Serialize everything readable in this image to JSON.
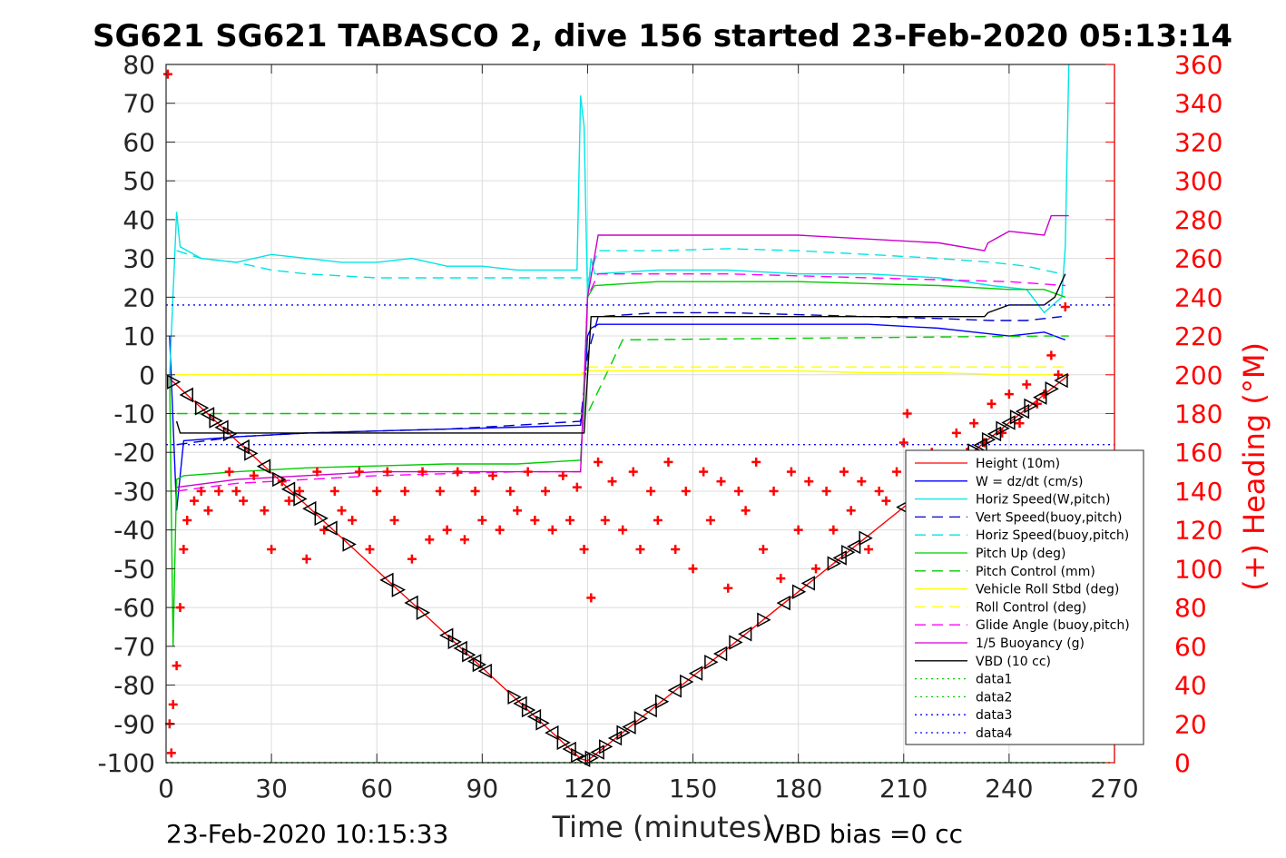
{
  "chart_data": {
    "type": "line",
    "title": "SG621 SG621 TABASCO 2, dive 156 started 23-Feb-2020 05:13:14",
    "xlabel": "Time (minutes)",
    "ylabel_right": "(+) Heading (°M)",
    "xlim": [
      0,
      270
    ],
    "ylim": [
      -100,
      80
    ],
    "ylim_right": [
      0,
      360
    ],
    "x_ticks": [
      "0",
      "30",
      "60",
      "90",
      "120",
      "150",
      "180",
      "210",
      "240",
      "270"
    ],
    "y_ticks": [
      "80",
      "70",
      "60",
      "50",
      "40",
      "30",
      "20",
      "10",
      "0",
      "-10",
      "-20",
      "-30",
      "-40",
      "-50",
      "-60",
      "-70",
      "-80",
      "-90",
      "-100"
    ],
    "y_ticks_right": [
      "360",
      "340",
      "320",
      "300",
      "280",
      "260",
      "240",
      "220",
      "200",
      "180",
      "160",
      "140",
      "120",
      "100",
      "80",
      "60",
      "40",
      "20",
      "0"
    ],
    "grid": true,
    "legend_position": "lower-right",
    "footer_left": "23-Feb-2020 10:15:33",
    "footer_right": "VBD bias =0 cc",
    "series": [
      {
        "name": "Height (10m)",
        "color": "#ff0000",
        "style": "solid",
        "x": [
          1,
          118,
          120,
          257
        ],
        "values": [
          -1,
          -99,
          -99.5,
          0
        ]
      },
      {
        "name": "W = dz/dt (cm/s)",
        "color": "#0000ff",
        "style": "solid",
        "x": [
          1,
          3,
          5,
          20,
          40,
          60,
          80,
          100,
          118,
          119,
          120,
          121,
          123,
          140,
          160,
          180,
          200,
          220,
          230,
          240,
          250,
          256
        ],
        "values": [
          10,
          -35,
          -17,
          -16,
          -15,
          -14.5,
          -14,
          -13.5,
          -13,
          -5,
          10,
          12,
          13,
          13,
          13,
          13,
          13,
          12,
          11,
          10,
          11,
          9
        ]
      },
      {
        "name": "Horiz Speed(W,pitch)",
        "color": "#00e5e5",
        "style": "solid",
        "x": [
          1,
          3,
          4,
          10,
          20,
          30,
          40,
          50,
          60,
          70,
          80,
          90,
          100,
          110,
          117,
          118,
          119,
          120,
          121,
          122,
          140,
          160,
          180,
          200,
          220,
          235,
          245,
          250,
          255,
          256,
          257
        ],
        "values": [
          0,
          42,
          33,
          30,
          29,
          31,
          30,
          29,
          29,
          30,
          28,
          28,
          27,
          27,
          27,
          72,
          64,
          20,
          30,
          26,
          27,
          27,
          26,
          26,
          25,
          23,
          22,
          16,
          20,
          33,
          80
        ]
      },
      {
        "name": "Vert Speed(buoy,pitch)",
        "color": "#0000cd",
        "style": "dashed",
        "x": [
          3,
          20,
          40,
          60,
          80,
          100,
          118,
          120,
          123,
          140,
          160,
          180,
          200,
          220,
          235,
          245,
          255
        ],
        "values": [
          -18,
          -16,
          -15,
          -14.5,
          -14,
          -13,
          -12,
          5,
          15,
          16,
          16,
          15.5,
          15,
          14.5,
          14,
          14,
          15
        ]
      },
      {
        "name": "Horiz Speed(buoy,pitch)",
        "color": "#00e5e5",
        "style": "dashed",
        "x": [
          3,
          10,
          20,
          30,
          40,
          60,
          80,
          100,
          118,
          120,
          123,
          140,
          160,
          180,
          200,
          220,
          235,
          245,
          255
        ],
        "values": [
          32,
          30,
          29,
          27,
          26,
          25,
          25,
          25,
          25,
          24,
          32,
          32,
          32.5,
          32,
          31,
          30,
          29,
          28,
          26
        ]
      },
      {
        "name": "Pitch Up (deg)",
        "color": "#00cc00",
        "style": "solid",
        "x": [
          1,
          2,
          3,
          5,
          20,
          40,
          60,
          80,
          100,
          118,
          119,
          120,
          122,
          140,
          160,
          180,
          200,
          220,
          240,
          250,
          256
        ],
        "values": [
          0,
          -70,
          -27,
          -26,
          -25,
          -24,
          -23.5,
          -23,
          -23,
          -22,
          -7,
          20,
          23,
          24,
          24,
          24,
          23.5,
          23,
          22,
          22,
          20
        ]
      },
      {
        "name": "Pitch Control (mm)",
        "color": "#00cc00",
        "style": "dashed",
        "x": [
          3,
          118,
          120,
          130,
          250,
          257
        ],
        "values": [
          -10,
          -10,
          -10,
          9,
          10,
          10
        ]
      },
      {
        "name": "Vehicle Roll Stbd (deg)",
        "color": "#ffff00",
        "style": "solid",
        "x": [
          3,
          20,
          40,
          60,
          80,
          100,
          118,
          120,
          140,
          160,
          180,
          200,
          220,
          240,
          256
        ],
        "values": [
          0,
          0,
          0,
          0,
          0,
          0,
          0,
          1,
          1,
          1,
          1,
          0.5,
          0.5,
          0,
          0
        ]
      },
      {
        "name": "Roll Control (deg)",
        "color": "#ffff00",
        "style": "dashed",
        "x": [
          3,
          118,
          120,
          257
        ],
        "values": [
          0,
          0,
          2,
          2
        ]
      },
      {
        "name": "Glide Angle (buoy,pitch)",
        "color": "#ff00ff",
        "style": "dashed",
        "x": [
          3,
          20,
          40,
          60,
          80,
          100,
          118,
          120,
          123,
          140,
          160,
          180,
          200,
          220,
          240,
          256
        ],
        "values": [
          -30,
          -28,
          -27,
          -26,
          -25.5,
          -25,
          -25,
          20,
          26,
          26,
          26,
          25.5,
          25,
          24.5,
          24,
          23
        ]
      },
      {
        "name": "1/5 Buoyancy (g)",
        "color": "#cc00cc",
        "style": "solid",
        "x": [
          3,
          20,
          60,
          100,
          118,
          120,
          123,
          150,
          180,
          200,
          220,
          233,
          234,
          240,
          250,
          252,
          257
        ],
        "values": [
          -29,
          -27,
          -25,
          -25,
          -25,
          20,
          36,
          36,
          36,
          35,
          34,
          32,
          34,
          37,
          36,
          41,
          41
        ]
      },
      {
        "name": "VBD (10 cc)",
        "color": "#000000",
        "style": "solid",
        "x": [
          3,
          4,
          118,
          119,
          121,
          233,
          234,
          240,
          250,
          253,
          256
        ],
        "values": [
          -12,
          -15,
          -15,
          -15,
          15,
          15,
          16,
          18,
          18,
          20,
          26
        ]
      },
      {
        "name": "data1",
        "color": "#00cc00",
        "style": "dotted",
        "x": [
          0,
          270
        ],
        "values": [
          -100,
          -100
        ]
      },
      {
        "name": "data2",
        "color": "#00cc00",
        "style": "dotted",
        "x": [
          0,
          270
        ],
        "values": [
          -100,
          -100
        ]
      },
      {
        "name": "data3",
        "color": "#0000ff",
        "style": "dotted",
        "x": [
          0,
          270
        ],
        "values": [
          18,
          18
        ]
      },
      {
        "name": "data4",
        "color": "#0000ff",
        "style": "dotted",
        "x": [
          0,
          270
        ],
        "values": [
          -18,
          -18
        ]
      }
    ],
    "heading": {
      "name": "heading",
      "color": "#ff0000",
      "marker": "+",
      "axis": "right",
      "x": [
        0.5,
        1,
        1.5,
        2,
        3,
        4,
        5,
        6,
        8,
        10,
        12,
        15,
        18,
        20,
        22,
        25,
        28,
        30,
        33,
        35,
        38,
        40,
        43,
        45,
        48,
        50,
        53,
        55,
        58,
        60,
        63,
        65,
        68,
        70,
        73,
        75,
        78,
        80,
        83,
        85,
        88,
        90,
        93,
        95,
        98,
        100,
        103,
        105,
        108,
        110,
        113,
        115,
        117,
        119,
        121,
        123,
        125,
        127,
        130,
        133,
        135,
        138,
        140,
        143,
        145,
        148,
        150,
        153,
        155,
        158,
        160,
        163,
        165,
        168,
        170,
        173,
        175,
        178,
        180,
        183,
        185,
        188,
        190,
        193,
        195,
        198,
        200,
        203,
        205,
        208,
        210,
        211,
        213,
        215,
        218,
        220,
        223,
        225,
        228,
        230,
        233,
        235,
        238,
        240,
        243,
        245,
        248,
        250,
        252,
        254,
        256
      ],
      "values": [
        355,
        20,
        5,
        30,
        50,
        80,
        110,
        125,
        135,
        140,
        130,
        140,
        150,
        140,
        135,
        148,
        130,
        110,
        145,
        135,
        140,
        105,
        150,
        120,
        140,
        130,
        125,
        150,
        110,
        140,
        150,
        125,
        140,
        105,
        150,
        115,
        140,
        120,
        150,
        115,
        140,
        125,
        148,
        120,
        140,
        130,
        150,
        125,
        140,
        120,
        148,
        125,
        142,
        110,
        85,
        155,
        125,
        145,
        120,
        150,
        110,
        140,
        125,
        155,
        110,
        140,
        100,
        150,
        125,
        145,
        90,
        140,
        130,
        155,
        110,
        140,
        95,
        150,
        120,
        145,
        100,
        140,
        120,
        150,
        130,
        145,
        110,
        140,
        135,
        150,
        165,
        180,
        150,
        140,
        160,
        150,
        155,
        170,
        160,
        175,
        165,
        185,
        170,
        190,
        175,
        195,
        185,
        190,
        210,
        200,
        235
      ]
    },
    "markers": {
      "name": "depth markers",
      "color": "#000000",
      "symbols": [
        "<",
        ">"
      ],
      "x": [
        2,
        6,
        10,
        12,
        14,
        16,
        18,
        22,
        24,
        28,
        32,
        35,
        38,
        41,
        44,
        47,
        52,
        63,
        66,
        70,
        73,
        80,
        82,
        84,
        86,
        88,
        89,
        91,
        99,
        101,
        103,
        105,
        107,
        110,
        113,
        115,
        117,
        119,
        121,
        123,
        125,
        128,
        130,
        132,
        135,
        138,
        141,
        145,
        148,
        151,
        155,
        158,
        162,
        165,
        170,
        176,
        180,
        183,
        190,
        192,
        194,
        196,
        199,
        210,
        213,
        218,
        222,
        226,
        230,
        232,
        234,
        236,
        238,
        240,
        242,
        244,
        246,
        249,
        252,
        255
      ]
    }
  }
}
